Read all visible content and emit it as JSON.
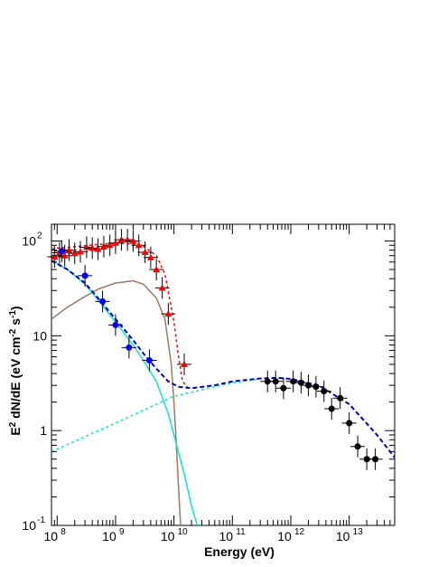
{
  "chart_data": {
    "type": "scatter",
    "xlabel": "Energy (eV)",
    "ylabel": {
      "parts": [
        "E",
        "2",
        " dN/dE (eV cm",
        "-2",
        " s",
        "-1",
        ")"
      ],
      "sup": [
        false,
        true,
        false,
        true,
        false,
        true,
        false
      ]
    },
    "x_scale": "log",
    "y_scale": "log",
    "xlim_eV": [
      80000000.0,
      60000000000000.0
    ],
    "ylim": [
      0.1,
      150
    ],
    "x_ticks": [
      {
        "base": "10",
        "exp": "8",
        "value": 100000000.0
      },
      {
        "base": "10",
        "exp": "9",
        "value": 1000000000.0
      },
      {
        "base": "10",
        "exp": "10",
        "value": 10000000000.0
      },
      {
        "base": "10",
        "exp": "11",
        "value": 100000000000.0
      },
      {
        "base": "10",
        "exp": "12",
        "value": 1000000000000.0
      },
      {
        "base": "10",
        "exp": "13",
        "value": 10000000000000.0
      }
    ],
    "y_ticks": [
      {
        "base": "10",
        "exp": "-1",
        "value": 0.1
      },
      {
        "base": "1",
        "exp": "",
        "value": 1
      },
      {
        "base": "10",
        "exp": "",
        "value": 10
      },
      {
        "base": "10",
        "exp": "2",
        "value": 100
      }
    ],
    "grid": false,
    "series": [
      {
        "marker": "triangle",
        "color": "#ff0000",
        "points": [
          {
            "x": 90000000.0,
            "y": 68
          },
          {
            "x": 110000000.0,
            "y": 75
          },
          {
            "x": 135000000.0,
            "y": 70
          },
          {
            "x": 160000000.0,
            "y": 80
          },
          {
            "x": 200000000.0,
            "y": 74
          },
          {
            "x": 250000000.0,
            "y": 77
          },
          {
            "x": 320000000.0,
            "y": 86
          },
          {
            "x": 400000000.0,
            "y": 84
          },
          {
            "x": 500000000.0,
            "y": 82
          },
          {
            "x": 630000000.0,
            "y": 87
          },
          {
            "x": 800000000.0,
            "y": 90
          },
          {
            "x": 1000000000.0,
            "y": 95
          },
          {
            "x": 1260000000.0,
            "y": 103
          },
          {
            "x": 1600000000.0,
            "y": 103
          },
          {
            "x": 2000000000.0,
            "y": 100
          },
          {
            "x": 2500000000.0,
            "y": 90
          },
          {
            "x": 3200000000.0,
            "y": 76
          },
          {
            "x": 4000000000.0,
            "y": 67
          },
          {
            "x": 5000000000.0,
            "y": 50
          },
          {
            "x": 6300000000.0,
            "y": 32
          },
          {
            "x": 8000000000.0,
            "y": 17
          },
          {
            "x": 15000000000.0,
            "y": 5
          }
        ]
      },
      {
        "marker": "circle",
        "color": "#0000ff",
        "points": [
          {
            "x": 120000000.0,
            "y": 78
          },
          {
            "x": 300000000.0,
            "y": 43
          },
          {
            "x": 600000000.0,
            "y": 23
          },
          {
            "x": 1000000000.0,
            "y": 13
          },
          {
            "x": 1700000000.0,
            "y": 7.5
          },
          {
            "x": 3800000000.0,
            "y": 5.5
          }
        ]
      },
      {
        "marker": "circle",
        "color": "#000000",
        "points": [
          {
            "x": 400000000000.0,
            "y": 3.3
          },
          {
            "x": 550000000000.0,
            "y": 3.3
          },
          {
            "x": 750000000000.0,
            "y": 2.8
          },
          {
            "x": 1100000000000.0,
            "y": 3.3
          },
          {
            "x": 1500000000000.0,
            "y": 3.2
          },
          {
            "x": 2000000000000.0,
            "y": 3.0
          },
          {
            "x": 2700000000000.0,
            "y": 2.9
          },
          {
            "x": 3700000000000.0,
            "y": 2.6
          },
          {
            "x": 5000000000000.0,
            "y": 1.7
          },
          {
            "x": 7000000000000.0,
            "y": 2.2
          },
          {
            "x": 10000000000000.0,
            "y": 1.2
          },
          {
            "x": 14000000000000.0,
            "y": 0.68
          },
          {
            "x": 20000000000000.0,
            "y": 0.5
          },
          {
            "x": 28000000000000.0,
            "y": 0.5
          }
        ]
      }
    ],
    "curves": [
      {
        "style": "dotted",
        "color": "#ff0000",
        "points": [
          {
            "x": 80000000.0,
            "y": 82
          },
          {
            "x": 100000000.0,
            "y": 84
          },
          {
            "x": 200000000.0,
            "y": 87
          },
          {
            "x": 500000000.0,
            "y": 92
          },
          {
            "x": 1000000000.0,
            "y": 95
          },
          {
            "x": 2000000000.0,
            "y": 93
          },
          {
            "x": 3000000000.0,
            "y": 88
          },
          {
            "x": 5000000000.0,
            "y": 70
          },
          {
            "x": 7000000000.0,
            "y": 45
          },
          {
            "x": 10000000000.0,
            "y": 14
          },
          {
            "x": 12000000000.0,
            "y": 6
          },
          {
            "x": 14000000000.0,
            "y": 3.3
          },
          {
            "x": 17000000000.0,
            "y": 2.9
          }
        ]
      },
      {
        "style": "solid",
        "color": "#a07860",
        "points": [
          {
            "x": 80000000.0,
            "y": 15
          },
          {
            "x": 150000000.0,
            "y": 20
          },
          {
            "x": 300000000.0,
            "y": 26
          },
          {
            "x": 500000000.0,
            "y": 31
          },
          {
            "x": 1000000000.0,
            "y": 36
          },
          {
            "x": 2000000000.0,
            "y": 38
          },
          {
            "x": 3000000000.0,
            "y": 35
          },
          {
            "x": 5000000000.0,
            "y": 25
          },
          {
            "x": 7000000000.0,
            "y": 15
          },
          {
            "x": 9000000000.0,
            "y": 5
          },
          {
            "x": 10000000000.0,
            "y": 2
          },
          {
            "x": 11000000000.0,
            "y": 0.7
          },
          {
            "x": 12000000000.0,
            "y": 0.25
          },
          {
            "x": 13000000000.0,
            "y": 0.1
          }
        ]
      },
      {
        "style": "solid",
        "color": "#00e5e5",
        "points": [
          {
            "x": 80000000.0,
            "y": 62
          },
          {
            "x": 150000000.0,
            "y": 50
          },
          {
            "x": 300000000.0,
            "y": 35
          },
          {
            "x": 500000000.0,
            "y": 24
          },
          {
            "x": 1000000000.0,
            "y": 14
          },
          {
            "x": 2000000000.0,
            "y": 8
          },
          {
            "x": 3000000000.0,
            "y": 5.5
          },
          {
            "x": 5000000000.0,
            "y": 3.3
          },
          {
            "x": 8000000000.0,
            "y": 1.5
          },
          {
            "x": 10000000000.0,
            "y": 0.9
          },
          {
            "x": 15000000000.0,
            "y": 0.35
          },
          {
            "x": 20000000000.0,
            "y": 0.16
          },
          {
            "x": 25000000000.0,
            "y": 0.1
          }
        ]
      },
      {
        "style": "dotted",
        "color": "#00e5e5",
        "points": [
          {
            "x": 80000000.0,
            "y": 0.6
          },
          {
            "x": 1000000000.0,
            "y": 1.2
          },
          {
            "x": 10000000000.0,
            "y": 2.3
          },
          {
            "x": 100000000000.0,
            "y": 3.2
          },
          {
            "x": 300000000000.0,
            "y": 3.5
          }
        ]
      },
      {
        "style": "dashed",
        "color": "#0000cc",
        "points": [
          {
            "x": 80000000.0,
            "y": 62
          },
          {
            "x": 150000000.0,
            "y": 50
          },
          {
            "x": 300000000.0,
            "y": 36
          },
          {
            "x": 500000000.0,
            "y": 25
          },
          {
            "x": 1000000000.0,
            "y": 15
          },
          {
            "x": 2000000000.0,
            "y": 9
          },
          {
            "x": 3000000000.0,
            "y": 6.5
          },
          {
            "x": 5000000000.0,
            "y": 4.5
          },
          {
            "x": 8000000000.0,
            "y": 3.3
          },
          {
            "x": 12000000000.0,
            "y": 2.9
          },
          {
            "x": 20000000000.0,
            "y": 2.8
          },
          {
            "x": 50000000000.0,
            "y": 3.0
          },
          {
            "x": 100000000000.0,
            "y": 3.3
          },
          {
            "x": 300000000000.0,
            "y": 3.55
          },
          {
            "x": 600000000000.0,
            "y": 3.6
          },
          {
            "x": 1000000000000.0,
            "y": 3.5
          },
          {
            "x": 3000000000000.0,
            "y": 3.0
          },
          {
            "x": 10000000000000.0,
            "y": 1.9
          },
          {
            "x": 30000000000000.0,
            "y": 0.9
          },
          {
            "x": 60000000000000.0,
            "y": 0.52
          }
        ]
      }
    ]
  }
}
